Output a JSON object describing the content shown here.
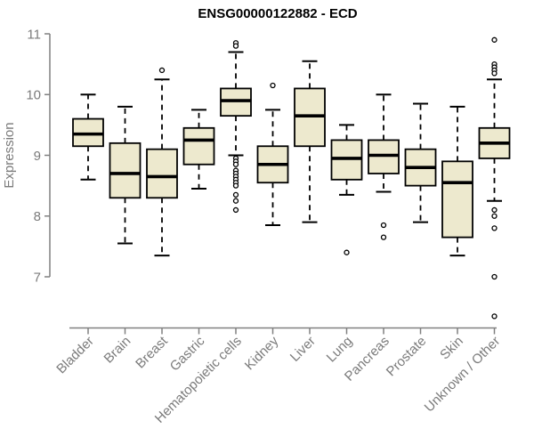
{
  "colors": {
    "background": "#ffffff",
    "box_fill": "#ede9ce",
    "box_stroke": "#000000",
    "median_stroke": "#000000",
    "whisker_stroke": "#000000",
    "outlier_stroke": "#000000",
    "axis_line": "#808080",
    "axis_text": "#7b7b7b",
    "title_text": "#000000"
  },
  "chart_data": {
    "type": "boxplot",
    "title": "ENSG00000122882 - ECD",
    "xlabel": "",
    "ylabel": "Expression",
    "ylim": [
      7,
      11
    ],
    "yticks": [
      "11",
      "10",
      "9",
      "8",
      "7"
    ],
    "ytick_values": [
      11,
      10,
      9,
      8,
      7
    ],
    "grid": "off",
    "legend": "none",
    "categories": [
      "Bladder",
      "Brain",
      "Breast",
      "Gastric",
      "Hematopoietic cells",
      "Kidney",
      "Liver",
      "Lung",
      "Pancreas",
      "Prostate",
      "Skin",
      "Unknown / Other"
    ],
    "series": [
      {
        "name": "Bladder",
        "whisker_low": 8.6,
        "q1": 9.15,
        "median": 9.35,
        "q3": 9.6,
        "whisker_high": 10.0,
        "outliers": []
      },
      {
        "name": "Brain",
        "whisker_low": 7.55,
        "q1": 8.3,
        "median": 8.7,
        "q3": 9.2,
        "whisker_high": 9.8,
        "outliers": []
      },
      {
        "name": "Breast",
        "whisker_low": 7.35,
        "q1": 8.3,
        "median": 8.65,
        "q3": 9.1,
        "whisker_high": 10.25,
        "outliers": [
          10.4
        ]
      },
      {
        "name": "Gastric",
        "whisker_low": 8.45,
        "q1": 8.85,
        "median": 9.25,
        "q3": 9.45,
        "whisker_high": 9.75,
        "outliers": []
      },
      {
        "name": "Hematopoietic cells",
        "whisker_low": 9.0,
        "q1": 9.65,
        "median": 9.9,
        "q3": 10.1,
        "whisker_high": 10.7,
        "outliers": [
          10.85,
          10.8,
          8.95,
          8.9,
          8.85,
          8.75,
          8.7,
          8.65,
          8.6,
          8.55,
          8.5,
          8.35,
          8.25,
          8.1
        ]
      },
      {
        "name": "Kidney",
        "whisker_low": 7.85,
        "q1": 8.55,
        "median": 8.85,
        "q3": 9.15,
        "whisker_high": 9.75,
        "outliers": [
          10.15
        ]
      },
      {
        "name": "Liver",
        "whisker_low": 7.9,
        "q1": 9.15,
        "median": 9.65,
        "q3": 10.1,
        "whisker_high": 10.55,
        "outliers": []
      },
      {
        "name": "Lung",
        "whisker_low": 8.35,
        "q1": 8.6,
        "median": 8.95,
        "q3": 9.25,
        "whisker_high": 9.5,
        "outliers": [
          7.4
        ]
      },
      {
        "name": "Pancreas",
        "whisker_low": 8.4,
        "q1": 8.7,
        "median": 9.0,
        "q3": 9.25,
        "whisker_high": 10.0,
        "outliers": [
          7.85,
          7.65
        ]
      },
      {
        "name": "Prostate",
        "whisker_low": 7.9,
        "q1": 8.5,
        "median": 8.8,
        "q3": 9.1,
        "whisker_high": 9.85,
        "outliers": []
      },
      {
        "name": "Skin",
        "whisker_low": 7.35,
        "q1": 7.65,
        "median": 8.55,
        "q3": 8.9,
        "whisker_high": 9.8,
        "outliers": []
      },
      {
        "name": "Unknown / Other",
        "whisker_low": 8.25,
        "q1": 8.95,
        "median": 9.2,
        "q3": 9.45,
        "whisker_high": 10.25,
        "outliers": [
          10.9,
          10.5,
          10.45,
          10.4,
          10.35,
          8.1,
          8.0,
          7.8,
          7.0,
          6.35
        ]
      }
    ]
  }
}
